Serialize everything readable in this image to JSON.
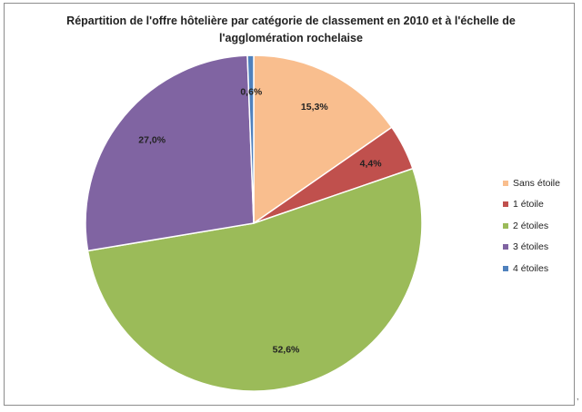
{
  "chart_data": {
    "type": "pie",
    "title_lines": [
      "Répartition de l'offre hôtelière par catégorie de classement en 2010  et à l'échelle de",
      "l'agglomération rochelaise"
    ],
    "categories": [
      "Sans étoile",
      "1 étoile",
      "2 étoiles",
      "3 étoiles",
      "4 étoiles"
    ],
    "values": [
      15.3,
      4.4,
      52.6,
      27.0,
      0.6
    ],
    "value_labels": [
      "15,3%",
      "4,4%",
      "52,6%",
      "27,0%",
      "0,6%"
    ],
    "colors": [
      "#F9BE8E",
      "#C0504D",
      "#9BBB59",
      "#8064A2",
      "#4F81BD"
    ],
    "start_angle": "12 o'clock",
    "direction": "clockwise",
    "legend_position": "right"
  },
  "stray_mark": ","
}
